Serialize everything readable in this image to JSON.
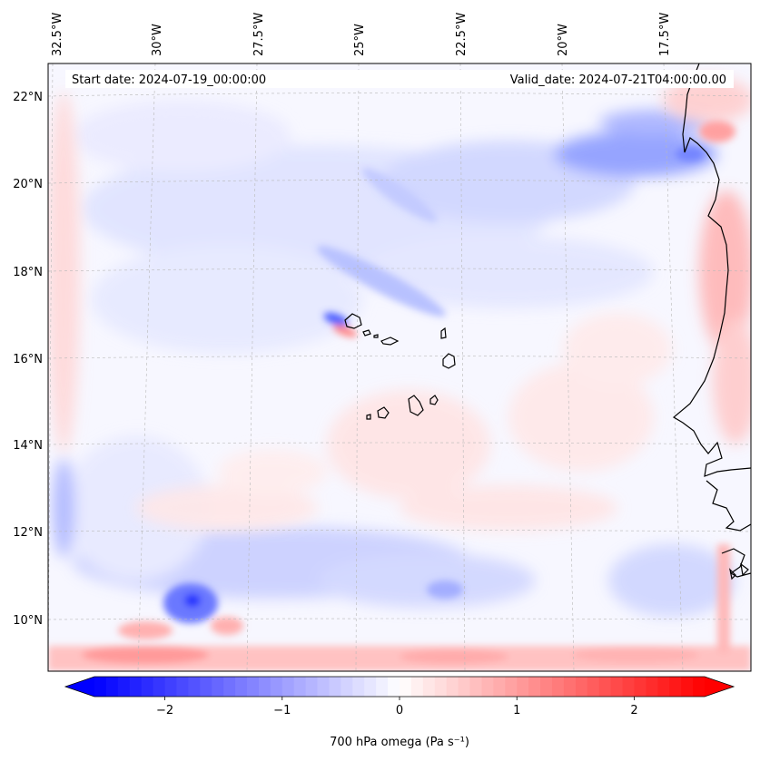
{
  "map": {
    "start_date_label": "Start date: 2024-07-19_00:00:00",
    "valid_date_label": "Valid_date: 2024-07-21T04:00:00.00",
    "lon_labels": [
      "32.5°W",
      "30°W",
      "27.5°W",
      "25°W",
      "22.5°W",
      "20°W",
      "17.5°W"
    ],
    "lat_labels": [
      "22°N",
      "20°N",
      "18°N",
      "16°N",
      "14°N",
      "12°N",
      "10°N"
    ],
    "gridlines": true,
    "coastline_color": "#000000"
  },
  "colorbar": {
    "label": "700 hPa omega (Pa s⁻¹)",
    "ticks": [
      "−2",
      "−1",
      "0",
      "1",
      "2"
    ],
    "tick_values": [
      -2,
      -1,
      0,
      1,
      2
    ],
    "vmin": -2.6,
    "vmax": 2.6,
    "colormap": "bwr",
    "color_low": "#0000ff",
    "color_mid": "#ffffff",
    "color_high": "#ff0000"
  }
}
